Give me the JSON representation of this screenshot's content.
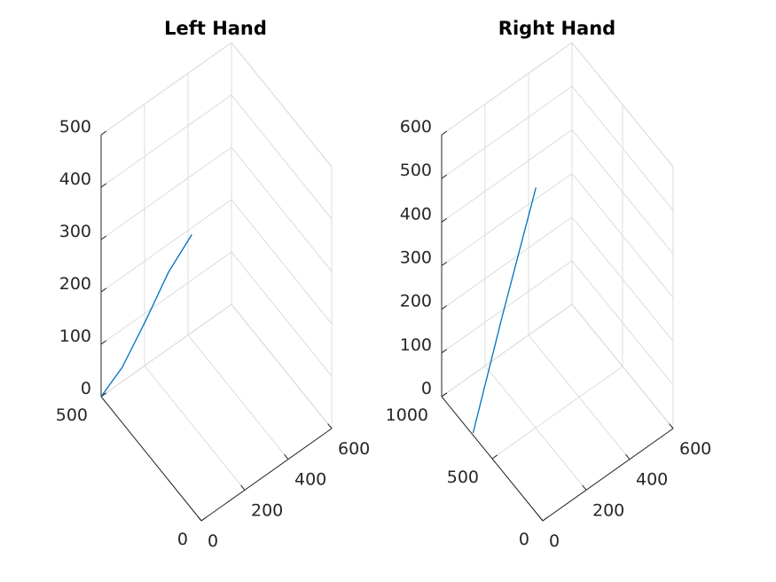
{
  "chart_data": [
    {
      "type": "line",
      "title": "Left Hand",
      "color": "#0072bd",
      "xlim": [
        0,
        600
      ],
      "ylim": [
        0,
        500
      ],
      "zlim": [
        0,
        500
      ],
      "x_ticks": [
        "0",
        "200",
        "400",
        "600"
      ],
      "y_ticks": [
        "0",
        "500"
      ],
      "z_ticks": [
        "0",
        "100",
        "200",
        "300",
        "400",
        "500"
      ],
      "series": [
        {
          "x": [
            0,
            6,
            14,
            22,
            30
          ],
          "y": [
            500,
            402,
            292,
            187,
            80
          ],
          "z": [
            0,
            100,
            240,
            380,
            500
          ]
        }
      ]
    },
    {
      "type": "line",
      "title": "Right Hand",
      "color": "#0072bd",
      "xlim": [
        0,
        600
      ],
      "ylim": [
        0,
        1000
      ],
      "zlim": [
        0,
        600
      ],
      "x_ticks": [
        "0",
        "200",
        "400",
        "600"
      ],
      "y_ticks": [
        "0",
        "500",
        "1000"
      ],
      "z_ticks": [
        "0",
        "100",
        "200",
        "300",
        "400",
        "500",
        "600"
      ],
      "series": [
        {
          "x": [
            5,
            72,
            150
          ],
          "y": [
            700,
            560,
            390
          ],
          "z": [
            0,
            280,
            600
          ]
        }
      ]
    }
  ]
}
